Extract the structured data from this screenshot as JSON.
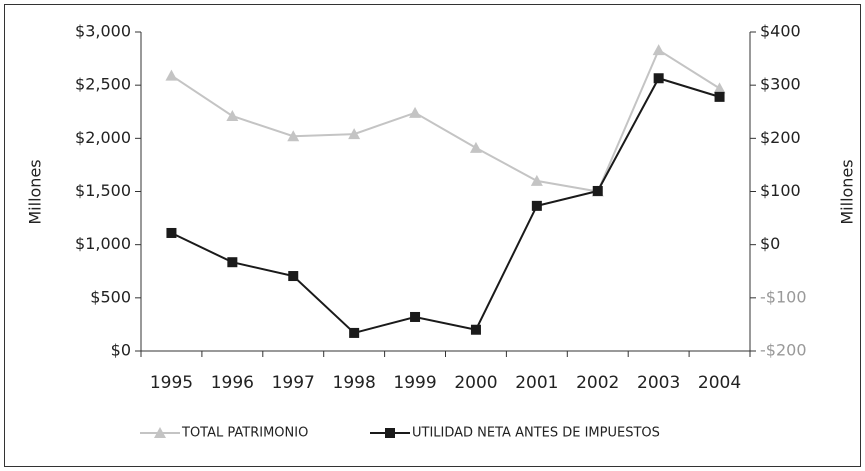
{
  "chart_data": {
    "type": "line",
    "categories": [
      "1995",
      "1996",
      "1997",
      "1998",
      "1999",
      "2000",
      "2001",
      "2002",
      "2003",
      "2004"
    ],
    "ylabel": "Millones",
    "y2label": "Millones",
    "ylim": [
      0,
      3000
    ],
    "yticks": [
      {
        "value": 0,
        "label": "$0"
      },
      {
        "value": 500,
        "label": "$500"
      },
      {
        "value": 1000,
        "label": "$1,000"
      },
      {
        "value": 1500,
        "label": "$1,500"
      },
      {
        "value": 2000,
        "label": "$2,000"
      },
      {
        "value": 2500,
        "label": "$2,500"
      },
      {
        "value": 3000,
        "label": "$3,000"
      }
    ],
    "y2lim": [
      -200,
      400
    ],
    "y2ticks": [
      {
        "value": -200,
        "label": "-$200"
      },
      {
        "value": -100,
        "label": "-$100"
      },
      {
        "value": 0,
        "label": "$0"
      },
      {
        "value": 100,
        "label": "$100"
      },
      {
        "value": 200,
        "label": "$200"
      },
      {
        "value": 300,
        "label": "$300"
      },
      {
        "value": 400,
        "label": "$400"
      }
    ],
    "legend": "bottom",
    "series": [
      {
        "name": "TOTAL PATRIMONIO",
        "color": "#c4c4c4",
        "marker": "triangle",
        "values": [
          2590,
          2210,
          2020,
          2040,
          2240,
          1910,
          1600,
          1500,
          2830,
          2470
        ]
      },
      {
        "name": "UTILIDAD NETA ANTES DE IMPUESTOS",
        "color": "#1a1a1a",
        "marker": "square",
        "axis": "y2",
        "values": [
          22,
          -33,
          -59,
          -166,
          -136,
          -160,
          73,
          101,
          313,
          278
        ]
      }
    ]
  }
}
